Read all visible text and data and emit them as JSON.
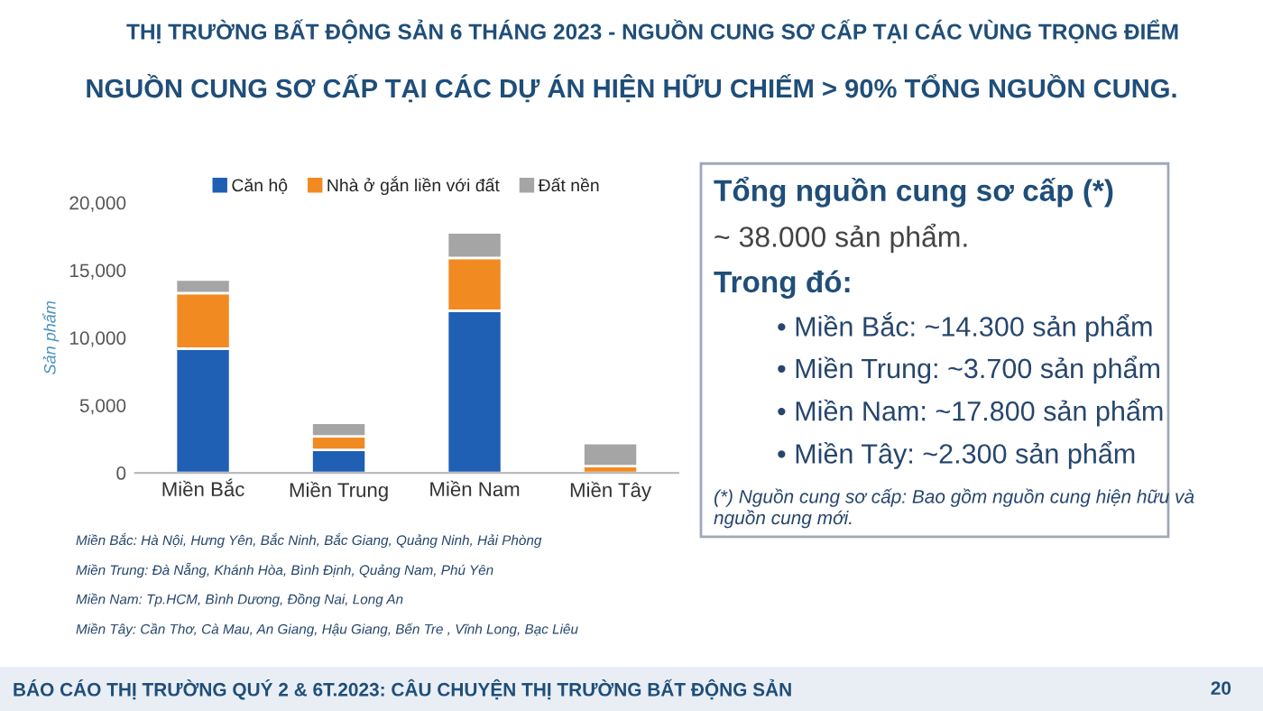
{
  "chart_data": {
    "type": "bar",
    "stacked": true,
    "title": "THỊ TRƯỜNG BẤT ĐỘNG SẢN 6 THÁNG 2023 - NGUỒN CUNG SƠ CẤP TẠI CÁC VÙNG TRỌNG ĐIỂM",
    "subtitle": "NGUỒN CUNG SƠ CẤP TẠI CÁC DỰ ÁN HIỆN HỮU CHIẾM > 90% TỔNG NGUỒN CUNG.",
    "ylabel": "Sản phẩm",
    "categories": [
      "Miền Bắc",
      "Miền Trung",
      "Miền Nam",
      "Miền Tây"
    ],
    "series": [
      {
        "name": "Căn hộ",
        "color": "#1f5fb4",
        "values": [
          9200,
          1700,
          12000,
          0
        ]
      },
      {
        "name": "Nhà ở gắn liền với đất",
        "color": "#f28a22",
        "values": [
          4100,
          1000,
          3900,
          500
        ]
      },
      {
        "name": "Đất nền",
        "color": "#a5a5a5",
        "values": [
          1000,
          1000,
          1900,
          1700
        ]
      }
    ],
    "ylim": [
      0,
      20000
    ],
    "yticks": [
      0,
      {
        "value": 5000,
        "label": "5,000"
      },
      {
        "value": 10000,
        "label": "10,000"
      },
      {
        "value": 15000,
        "label": "15,000"
      },
      {
        "value": 20000,
        "label": "20,000"
      }
    ],
    "grid": false,
    "legend": "top",
    "annotations": [
      "Tổng nguồn cung sơ cấp (*)",
      "~ 38.000 sản phẩm.",
      "Trong đó:",
      "• Miền Bắc: ~14.300 sản phẩm",
      "• Miền Trung: ~3.700 sản phẩm",
      "• Miền Nam: ~17.800 sản phẩm",
      "• Miền Tây: ~2.300 sản phẩm",
      "(*) Nguồn cung sơ cấp: Bao gồm nguồn cung hiện hữu và\nnguồn cung mới.",
      "Miền Bắc: Hà Nội, Hưng Yên, Bắc Ninh, Bắc Giang, Quảng Ninh, Hải Phòng",
      "Miền Trung: Đà Nẵng, Khánh Hòa, Bình Định, Quảng Nam, Phú Yên",
      "Miền Nam: Tp.HCM, Bình Dương, Đồng Nai, Long An",
      "Miền Tây: Cần Thơ, Cà Mau, An Giang, Hậu Giang, Bến Tre , Vĩnh Long, Bạc Liêu",
      "BÁO CÁO THỊ TRƯỜNG QUÝ 2 & 6T.2023: CÂU CHUYỆN THỊ TRƯỜNG BẤT ĐỘNG SẢN",
      "20"
    ]
  }
}
